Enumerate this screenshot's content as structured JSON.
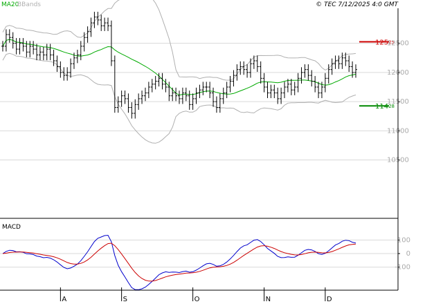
{
  "header": {
    "legend": [
      {
        "label": "MA20",
        "color": "#00aa00"
      },
      {
        "label": "BBands",
        "color": "#b0b0b0"
      }
    ],
    "source": "© TEC 7/12/2025 4:0 GMT"
  },
  "colors": {
    "price_bars": "#000000",
    "ma20": "#00aa00",
    "bbands": "#b0b0b0",
    "resistance": "#cc0000",
    "support": "#008800",
    "macd_line": "#0000cc",
    "signal_line": "#cc0000",
    "grid": "#d9d9d9",
    "axis": "#000000"
  },
  "chart_data": [
    {
      "type": "ohlc",
      "grid": true,
      "legend_placement": "top-left",
      "x_labels": [
        "A",
        "S",
        "O",
        "N",
        "D"
      ],
      "x_label_bar_index": [
        17,
        35,
        56,
        77,
        95
      ],
      "ylim": [
        95,
        131
      ],
      "y_ticks": [
        {
          "value": 125,
          "label": "12500"
        },
        {
          "value": 120,
          "label": "12000"
        },
        {
          "value": 115,
          "label": "11500"
        },
        {
          "value": 110,
          "label": "11000"
        },
        {
          "value": 105,
          "label": "10500"
        }
      ],
      "levels": [
        {
          "name": "resistance",
          "value": 125.25,
          "label_main": "125",
          "label_small": "25",
          "color": "#cc0000"
        },
        {
          "name": "support",
          "value": 114.28,
          "label_main": "114",
          "label_small": "28",
          "color": "#008800"
        }
      ],
      "close": [
        124.5,
        126.5,
        126.0,
        125.0,
        124.0,
        125.0,
        124.5,
        123.5,
        124.5,
        124.0,
        123.0,
        123.5,
        123.0,
        124.0,
        123.0,
        122.0,
        121.0,
        120.0,
        119.5,
        120.0,
        121.5,
        122.5,
        123.0,
        124.5,
        126.0,
        127.0,
        128.5,
        129.5,
        129.0,
        128.0,
        128.5,
        128.0,
        122.0,
        114.0,
        115.0,
        116.0,
        115.5,
        114.0,
        113.0,
        114.5,
        115.5,
        116.0,
        116.5,
        117.5,
        118.0,
        118.5,
        119.0,
        118.0,
        117.5,
        116.0,
        116.5,
        116.0,
        115.5,
        116.5,
        116.0,
        114.5,
        115.5,
        116.5,
        117.0,
        117.5,
        117.5,
        116.5,
        115.0,
        114.0,
        115.5,
        116.5,
        117.5,
        118.5,
        119.5,
        120.5,
        121.0,
        120.5,
        120.0,
        121.5,
        122.0,
        121.0,
        119.0,
        117.5,
        116.5,
        117.0,
        116.5,
        115.5,
        116.5,
        117.5,
        118.0,
        117.0,
        117.5,
        119.0,
        120.0,
        120.5,
        119.5,
        118.5,
        117.5,
        116.5,
        117.5,
        119.0,
        120.5,
        121.5,
        122.0,
        121.5,
        122.5,
        122.0,
        121.0,
        120.0,
        120.5
      ]
    },
    {
      "type": "line",
      "title": "MACD",
      "grid": true,
      "ylim": [
        -250,
        250
      ],
      "y_ticks": [
        {
          "value": 100,
          "label": "100"
        },
        {
          "value": 0,
          "label": "0"
        },
        {
          "value": -100,
          "label": "-100"
        }
      ],
      "series": []
    }
  ]
}
